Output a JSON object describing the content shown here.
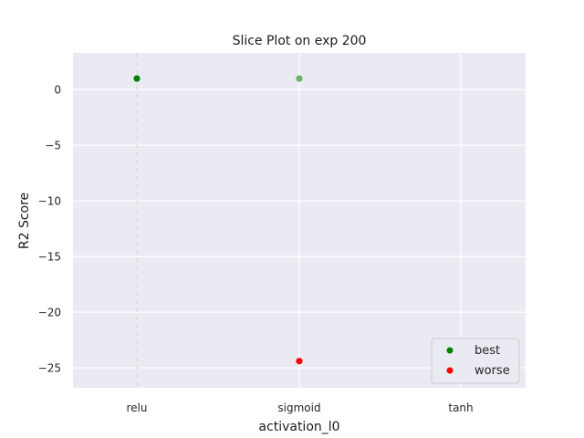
{
  "chart_data": {
    "type": "scatter",
    "title": "Slice Plot on exp 200",
    "xlabel": "activation_l0",
    "ylabel": "R2 Score",
    "categories": [
      "relu",
      "sigmoid",
      "tanh"
    ],
    "ylim": [
      -26.8,
      3.3
    ],
    "yticks": [
      0,
      -5,
      -10,
      -15,
      -20,
      -25
    ],
    "ytick_labels": [
      "0",
      "−5",
      "−10",
      "−15",
      "−20",
      "−25"
    ],
    "grid": true,
    "background": "#eaeaf2",
    "series": [
      {
        "name": "best",
        "color": "#008000",
        "points": [
          {
            "x": "relu",
            "y": 1.0
          }
        ]
      },
      {
        "name": "worse",
        "color": "#ff0000",
        "points": [
          {
            "x": "sigmoid",
            "y": -24.4
          }
        ]
      },
      {
        "name": "",
        "color": "#6aaf6a",
        "points": [
          {
            "x": "sigmoid",
            "y": 1.0
          }
        ]
      }
    ],
    "best_marker_line": {
      "x": "relu",
      "color": "#d9d9d9",
      "style": "dashed"
    },
    "legend": {
      "placement": "bottom-right",
      "entries": [
        "best",
        "worse"
      ]
    }
  }
}
